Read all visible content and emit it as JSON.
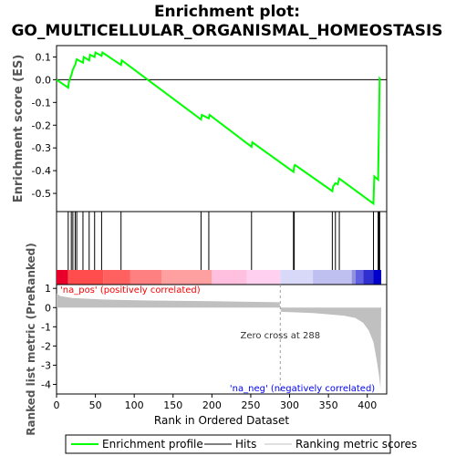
{
  "title_line1": "Enrichment plot:",
  "title_line2": "GO_MULTICELLULAR_ORGANISMAL_HOMEOSTASIS",
  "colors": {
    "es_line": "#00ff00",
    "hit": "#000000",
    "metric_fill": "#c0c0c0",
    "pos_label": "#ff0000",
    "neg_label": "#0000ff",
    "zero_cross": "#a0a0a0",
    "frame": "#000000"
  },
  "chart_data": [
    {
      "type": "line",
      "name": "enrichment-profile",
      "ylabel": "Enrichment score (ES)",
      "xlim": [
        0,
        425
      ],
      "ylim": [
        -0.58,
        0.15
      ],
      "yticks": [
        0.1,
        0.0,
        -0.1,
        -0.2,
        -0.3,
        -0.4,
        -0.5
      ],
      "ytick_labels": [
        "0.1",
        "0.0",
        "-0.1",
        "-0.2",
        "-0.3",
        "-0.4",
        "-0.5"
      ],
      "points": [
        [
          0,
          0.0
        ],
        [
          15,
          -0.035
        ],
        [
          16,
          -0.01
        ],
        [
          19,
          0.02
        ],
        [
          21,
          0.045
        ],
        [
          24,
          0.065
        ],
        [
          26,
          0.09
        ],
        [
          34,
          0.075
        ],
        [
          35,
          0.1
        ],
        [
          42,
          0.085
        ],
        [
          43,
          0.11
        ],
        [
          49,
          0.1
        ],
        [
          50,
          0.12
        ],
        [
          58,
          0.105
        ],
        [
          59,
          0.12
        ],
        [
          83,
          0.065
        ],
        [
          84,
          0.085
        ],
        [
          186,
          -0.175
        ],
        [
          187,
          -0.155
        ],
        [
          196,
          -0.17
        ],
        [
          197,
          -0.155
        ],
        [
          251,
          -0.295
        ],
        [
          252,
          -0.275
        ],
        [
          305,
          -0.405
        ],
        [
          306,
          -0.38
        ],
        [
          307,
          -0.375
        ],
        [
          355,
          -0.49
        ],
        [
          356,
          -0.47
        ],
        [
          359,
          -0.455
        ],
        [
          362,
          -0.46
        ],
        [
          364,
          -0.435
        ],
        [
          408,
          -0.545
        ],
        [
          409,
          -0.425
        ],
        [
          414,
          -0.44
        ],
        [
          415,
          -0.2
        ],
        [
          416,
          0.005
        ],
        [
          417,
          0.0
        ]
      ]
    },
    {
      "type": "hits",
      "name": "hits",
      "x": [
        15,
        19,
        21,
        24,
        26,
        34,
        42,
        49,
        58,
        83,
        186,
        196,
        251,
        305,
        306,
        355,
        359,
        364,
        408,
        414,
        415,
        416
      ]
    },
    {
      "type": "area",
      "name": "ranked-list-metric",
      "xlabel": "Rank in Ordered Dataset",
      "ylabel": "Ranked list metric (PreRanked)",
      "xlim": [
        0,
        425
      ],
      "ylim": [
        -4.5,
        1.2
      ],
      "xticks": [
        0,
        50,
        100,
        150,
        200,
        250,
        300,
        350,
        400
      ],
      "xtick_labels": [
        "0",
        "50",
        "100",
        "150",
        "200",
        "250",
        "300",
        "350",
        "400"
      ],
      "yticks": [
        1,
        0,
        -1,
        -2,
        -3,
        -4
      ],
      "ytick_labels": [
        "1",
        "0",
        "-1",
        "-2",
        "-3",
        "-4"
      ],
      "points": [
        [
          0,
          0.72
        ],
        [
          5,
          0.6
        ],
        [
          20,
          0.5
        ],
        [
          60,
          0.42
        ],
        [
          120,
          0.37
        ],
        [
          200,
          0.33
        ],
        [
          287,
          0.28
        ],
        [
          288,
          0.0
        ],
        [
          289,
          -0.22
        ],
        [
          330,
          -0.28
        ],
        [
          370,
          -0.42
        ],
        [
          385,
          -0.55
        ],
        [
          395,
          -0.8
        ],
        [
          402,
          -1.2
        ],
        [
          408,
          -1.8
        ],
        [
          412,
          -2.7
        ],
        [
          415,
          -3.5
        ],
        [
          417,
          -4.2
        ],
        [
          418,
          0.0
        ]
      ],
      "zero_cross_rank": 288,
      "zero_cross_label": "Zero cross at 288",
      "pos_label": "'na_pos' (positively correlated)",
      "neg_label": "'na_neg' (negatively correlated)"
    }
  ],
  "legend": {
    "items": [
      {
        "label": "Enrichment profile",
        "swatch": "green-line"
      },
      {
        "label": "Hits",
        "swatch": "black-line"
      },
      {
        "label": "Ranking metric scores",
        "swatch": "gray-line"
      }
    ]
  }
}
